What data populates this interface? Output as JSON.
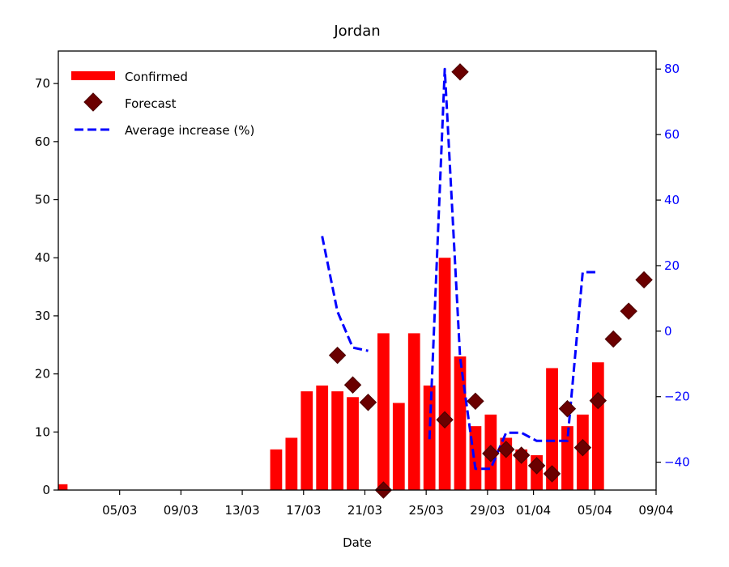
{
  "chart_data": {
    "type": "bar",
    "title": "Jordan",
    "xlabel": "Date",
    "ylabel": "",
    "ylabel_right": "",
    "x_range": [
      "2020-03-01",
      "2020-04-09"
    ],
    "ylim": [
      0,
      75.6
    ],
    "ylim_right": [
      -48.5,
      85.5
    ],
    "x_ticks": [
      {
        "date": "2020-03-05",
        "label": "05/03"
      },
      {
        "date": "2020-03-09",
        "label": "09/03"
      },
      {
        "date": "2020-03-13",
        "label": "13/03"
      },
      {
        "date": "2020-03-17",
        "label": "17/03"
      },
      {
        "date": "2020-03-21",
        "label": "21/03"
      },
      {
        "date": "2020-03-25",
        "label": "25/03"
      },
      {
        "date": "2020-03-29",
        "label": "29/03"
      },
      {
        "date": "2020-04-01",
        "label": "01/04"
      },
      {
        "date": "2020-04-05",
        "label": "05/04"
      },
      {
        "date": "2020-04-09",
        "label": "09/04"
      }
    ],
    "y_ticks": [
      0,
      10,
      20,
      30,
      40,
      50,
      60,
      70
    ],
    "y_ticks_right": [
      -40,
      -20,
      0,
      20,
      40,
      60,
      80
    ],
    "legend": {
      "placement": "top-left",
      "entries": [
        "Confirmed",
        "Forecast",
        "Average increase (%)"
      ]
    },
    "colors": {
      "confirmed": "#ff0000",
      "forecast": "#6b0000",
      "average": "#0000ff",
      "right_axis": "#0000ff"
    },
    "series": [
      {
        "name": "Confirmed",
        "type": "bar",
        "points": [
          {
            "x": "2020-03-01",
            "y": 1
          },
          {
            "x": "2020-03-15",
            "y": 7
          },
          {
            "x": "2020-03-16",
            "y": 9
          },
          {
            "x": "2020-03-17",
            "y": 17
          },
          {
            "x": "2020-03-18",
            "y": 18
          },
          {
            "x": "2020-03-19",
            "y": 17
          },
          {
            "x": "2020-03-20",
            "y": 16
          },
          {
            "x": "2020-03-22",
            "y": 27
          },
          {
            "x": "2020-03-23",
            "y": 15
          },
          {
            "x": "2020-03-24",
            "y": 27
          },
          {
            "x": "2020-03-25",
            "y": 18
          },
          {
            "x": "2020-03-26",
            "y": 40
          },
          {
            "x": "2020-03-27",
            "y": 23
          },
          {
            "x": "2020-03-28",
            "y": 11
          },
          {
            "x": "2020-03-29",
            "y": 13
          },
          {
            "x": "2020-03-30",
            "y": 9
          },
          {
            "x": "2020-03-31",
            "y": 7
          },
          {
            "x": "2020-04-01",
            "y": 6
          },
          {
            "x": "2020-04-02",
            "y": 21
          },
          {
            "x": "2020-04-03",
            "y": 11
          },
          {
            "x": "2020-04-04",
            "y": 13
          },
          {
            "x": "2020-04-05",
            "y": 22
          }
        ]
      },
      {
        "name": "Forecast",
        "type": "scatter",
        "points": [
          {
            "x": "2020-03-19",
            "y": 23.2
          },
          {
            "x": "2020-03-20",
            "y": 18.1
          },
          {
            "x": "2020-03-21",
            "y": 15.1
          },
          {
            "x": "2020-03-22",
            "y": 0
          },
          {
            "x": "2020-03-26",
            "y": 12.1
          },
          {
            "x": "2020-03-27",
            "y": 72.0
          },
          {
            "x": "2020-03-28",
            "y": 15.3
          },
          {
            "x": "2020-03-29",
            "y": 6.3
          },
          {
            "x": "2020-03-30",
            "y": 7.0
          },
          {
            "x": "2020-03-31",
            "y": 6.0
          },
          {
            "x": "2020-04-01",
            "y": 4.2
          },
          {
            "x": "2020-04-02",
            "y": 2.8
          },
          {
            "x": "2020-04-03",
            "y": 14.0
          },
          {
            "x": "2020-04-04",
            "y": 7.3
          },
          {
            "x": "2020-04-05",
            "y": 15.4
          },
          {
            "x": "2020-04-06",
            "y": 26.0
          },
          {
            "x": "2020-04-07",
            "y": 30.8
          },
          {
            "x": "2020-04-08",
            "y": 36.2
          }
        ]
      },
      {
        "name": "Average increase (%)",
        "type": "line",
        "axis": "right",
        "points": [
          {
            "x": "2020-03-18",
            "y": 29.0
          },
          {
            "x": "2020-03-19",
            "y": 6.0
          },
          {
            "x": "2020-03-20",
            "y": -5.0
          },
          {
            "x": "2020-03-21",
            "y": -6.0
          },
          {
            "x": "2020-03-25",
            "y": -33.0
          },
          {
            "x": "2020-03-26",
            "y": 80.0
          },
          {
            "x": "2020-03-27",
            "y": -8.0
          },
          {
            "x": "2020-03-28",
            "y": -42.0
          },
          {
            "x": "2020-03-29",
            "y": -42.0
          },
          {
            "x": "2020-03-30",
            "y": -31.0
          },
          {
            "x": "2020-03-31",
            "y": -31.0
          },
          {
            "x": "2020-04-01",
            "y": -33.5
          },
          {
            "x": "2020-04-02",
            "y": -33.5
          },
          {
            "x": "2020-04-03",
            "y": -33.5
          },
          {
            "x": "2020-04-04",
            "y": 18.0
          },
          {
            "x": "2020-04-05",
            "y": 18.0
          }
        ]
      }
    ]
  }
}
